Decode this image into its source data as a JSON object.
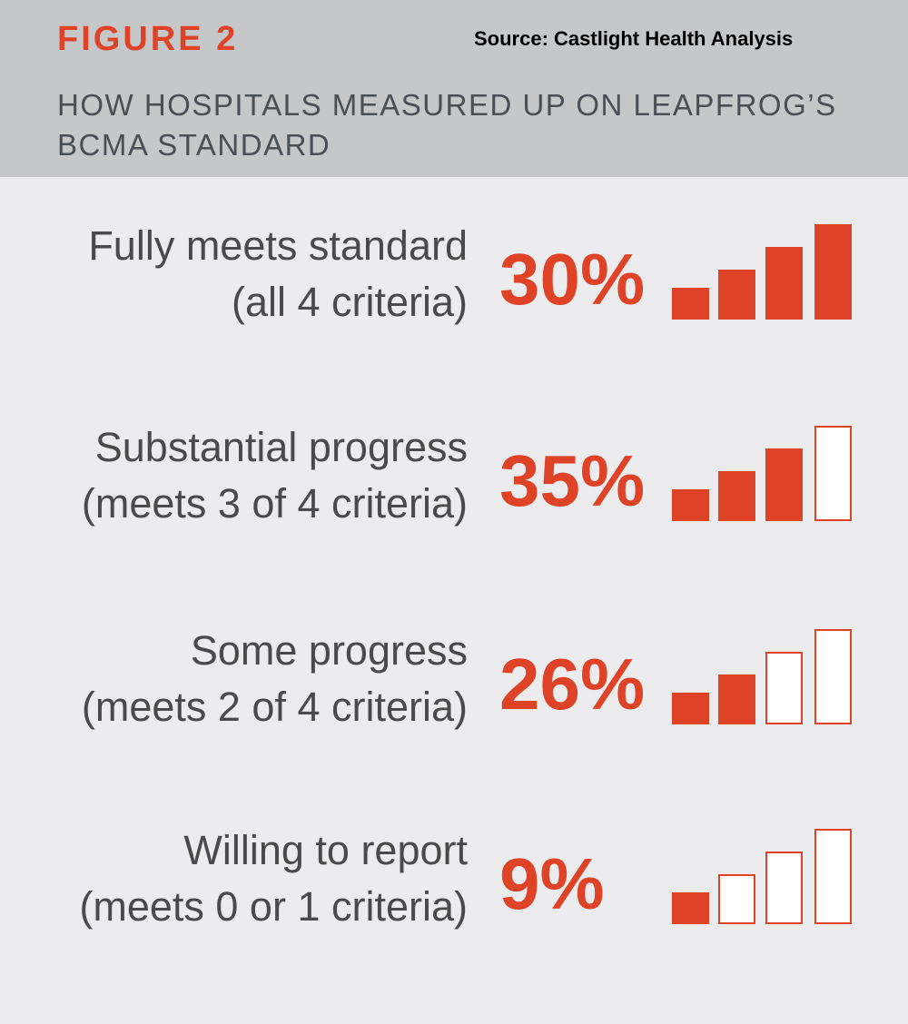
{
  "header": {
    "figure_label": "FIGURE 2",
    "source": "Source: Castlight Health Analysis",
    "title": "HOW HOSPITALS MEASURED UP ON LEAPFROG’S BCMA STANDARD"
  },
  "colors": {
    "accent": "#de4327",
    "header_bg": "#c6c7c9",
    "body_bg": "#ececee",
    "text": "#4a4a4a"
  },
  "chart_data": {
    "type": "bar",
    "title": "HOW HOSPITALS MEASURED UP ON LEAPFROG’S BCMA STANDARD",
    "categories": [
      "Fully meets standard (all 4 criteria)",
      "Substantial progress (meets 3 of 4 criteria)",
      "Some progress (meets 2 of 4 criteria)",
      "Willing to report (meets 0 or 1 criteria)"
    ],
    "values": [
      30,
      35,
      26,
      9
    ],
    "unit": "%",
    "rows": [
      {
        "line1": "Fully meets standard",
        "line2": "(all 4 criteria)",
        "value_label": "30%",
        "filled_bars": 4
      },
      {
        "line1": "Substantial progress",
        "line2": "(meets 3 of 4 criteria)",
        "value_label": "35%",
        "filled_bars": 3
      },
      {
        "line1": "Some progress",
        "line2": "(meets 2 of 4 criteria)",
        "value_label": "26%",
        "filled_bars": 2
      },
      {
        "line1": "Willing to report",
        "line2": "(meets 0 or 1 criteria)",
        "value_label": "9%",
        "filled_bars": 1
      }
    ]
  }
}
